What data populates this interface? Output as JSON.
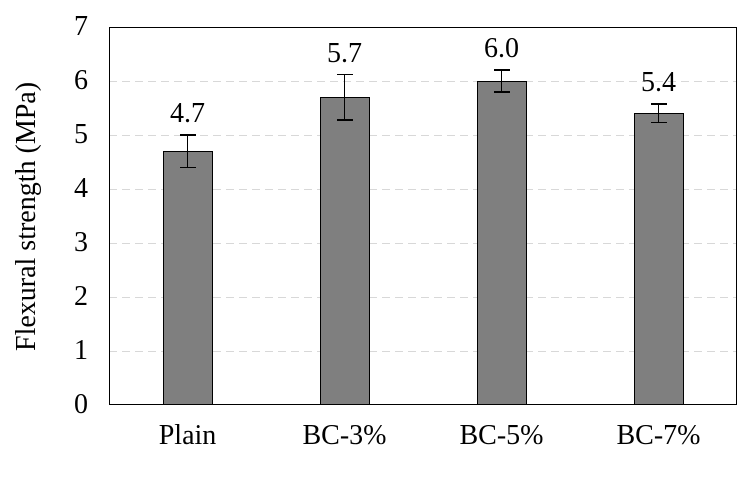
{
  "figure": {
    "background_color": "#ffffff",
    "text_color": "#000000"
  },
  "chart_data": {
    "type": "bar",
    "title": "",
    "xlabel": "",
    "ylabel": "Flexural strength (MPa)",
    "categories": [
      "Plain",
      "BC-3%",
      "BC-5%",
      "BC-7%"
    ],
    "values": [
      4.7,
      5.7,
      6.0,
      5.4
    ],
    "value_labels": [
      "4.7",
      "5.7",
      "6.0",
      "5.4"
    ],
    "error_bars": [
      0.3,
      0.42,
      0.2,
      0.17
    ],
    "ylim": [
      0,
      7
    ],
    "yticks": [
      "0",
      "1",
      "2",
      "3",
      "4",
      "5",
      "6",
      "7"
    ],
    "gridlines": {
      "show": true,
      "at": [
        1,
        2,
        3,
        4,
        5,
        6
      ],
      "style": "dashed"
    },
    "legend": "none",
    "colors": {
      "bar_fill": "#7f7f7f",
      "bar_border": "#000000",
      "error_bar": "#000000",
      "gridline": "#d8d8d8",
      "axis_border": "#000000"
    }
  }
}
